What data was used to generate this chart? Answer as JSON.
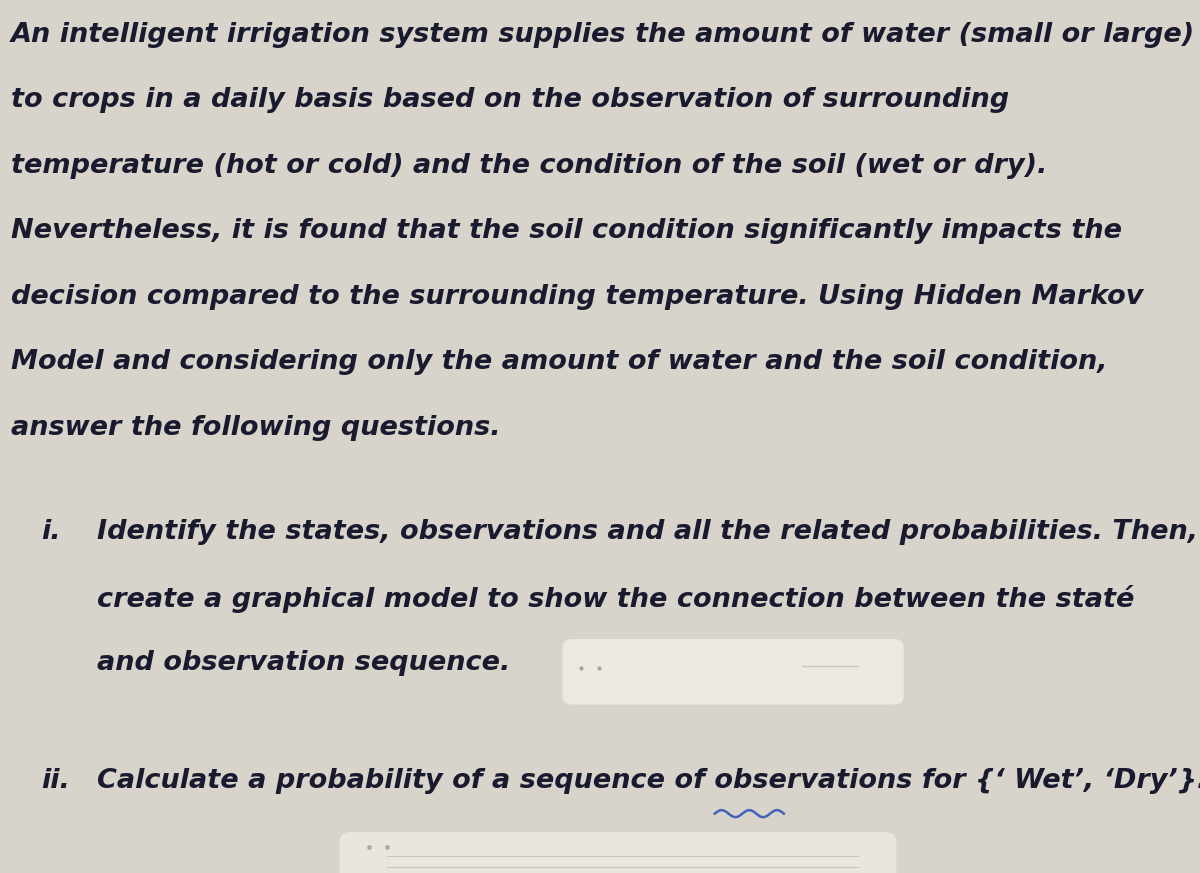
{
  "background_color": "#d8d4cc",
  "text_color": "#1a1a2e",
  "para_lines": [
    "An intelligent irrigation system supplies the amount of water (small or large)",
    "to crops in a daily basis based on the observation of surrounding",
    "temperature (hot or cold) and the condition of the soil (wet or dry).",
    "Nevertheless, it is found that the soil condition significantly impacts the",
    "decision compared to the surrounding temperature. Using Hidden Markov",
    "Model and considering only the amount of water and the soil condition,",
    "answer the following questions."
  ],
  "item_i_label": "i.",
  "item_i_lines": [
    "Identify the states, observations and all the related probabilities. Then,",
    "create a graphical model to show the connection between the staté",
    "and observation sequence."
  ],
  "item_ii_label": "ii.",
  "item_ii_text": "Calculate a probability of a sequence of observations for {‘ Wet’, ‘Dry’}.",
  "font_family": "DejaVu Sans",
  "font_size": 19.5,
  "redact1_color": "#e8e4de",
  "redact2_color": "#dedad4",
  "wavy_color": "#3355bb"
}
